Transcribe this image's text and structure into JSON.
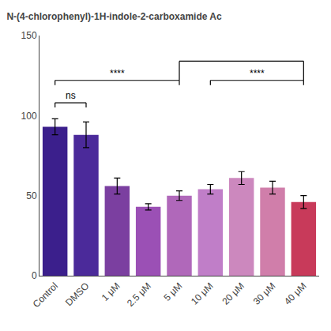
{
  "chart_data": {
    "type": "bar",
    "title": "N-(4-chlorophenyl)-1H-indole-2-carboxamide Ac",
    "categories": [
      "Control",
      "DMSO",
      "1 μM",
      "2.5 μM",
      "5 μM",
      "10 μM",
      "20 μM",
      "30 μM",
      "40 μM"
    ],
    "values": [
      93,
      88,
      56,
      43,
      50,
      54,
      61,
      55,
      46
    ],
    "errors": [
      5,
      8,
      5,
      2,
      3,
      3,
      4,
      4,
      4
    ],
    "colors": [
      "#3B1F8C",
      "#4B2A9A",
      "#7B3FA0",
      "#9B50B5",
      "#B068BA",
      "#C07EC8",
      "#CC88BE",
      "#D07EAA",
      "#C83A5A"
    ],
    "ylim": [
      0,
      150
    ],
    "yticks": [
      0,
      50,
      100,
      150
    ],
    "grid": false,
    "annotations": [
      {
        "text": "ns",
        "from": "Control",
        "to": "DMSO",
        "y": 108
      },
      {
        "text": "****",
        "from": "Control",
        "to": "5 μM",
        "y": 122
      },
      {
        "text": "****",
        "from": "10 μM",
        "to": "40 μM",
        "y": 122
      }
    ],
    "brackets": [
      {
        "from": "5 μM",
        "to": "40 μM",
        "y": 134,
        "base": 122
      }
    ]
  }
}
